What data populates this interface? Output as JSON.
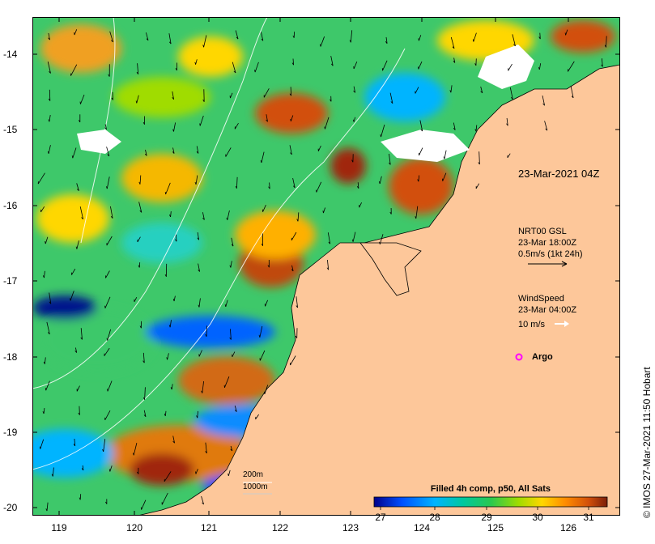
{
  "map": {
    "x_axis": {
      "labels": [
        "119",
        "120",
        "121",
        "122",
        "123",
        "124",
        "125",
        "126"
      ]
    },
    "y_axis": {
      "labels": [
        "-14",
        "-15",
        "-16",
        "-17",
        "-18",
        "-19",
        "-20"
      ]
    },
    "timestamp_label": "23-Mar-2021 04Z",
    "currents_legend": {
      "line1": "NRT00 GSL",
      "line2": "23-Mar 18:00Z",
      "line3": "0.5m/s (1kt 24h)"
    },
    "wind_legend": {
      "line1": "WindSpeed",
      "line2": "23-Mar 04:00Z",
      "line3": "10 m/s"
    },
    "argo_label": "Argo",
    "isobath_legend": {
      "line1": "200m",
      "line2": "1000m"
    },
    "colorbar": {
      "title": "Filled 4h comp, p50, All Sats",
      "labels": [
        "27",
        "28",
        "29",
        "30",
        "31"
      ],
      "colors": [
        "#00008b",
        "#0050ff",
        "#00b4ff",
        "#00c8a0",
        "#28c850",
        "#a0dc00",
        "#ffd700",
        "#ff8c00",
        "#d2500a",
        "#7a1e0a"
      ]
    },
    "credit": "© IMOS 27-Mar-2021 11:50 Hobart",
    "land_color": "#fdc79a",
    "cloud_color": "#ffffff",
    "argo_color": "#ff00ff"
  }
}
